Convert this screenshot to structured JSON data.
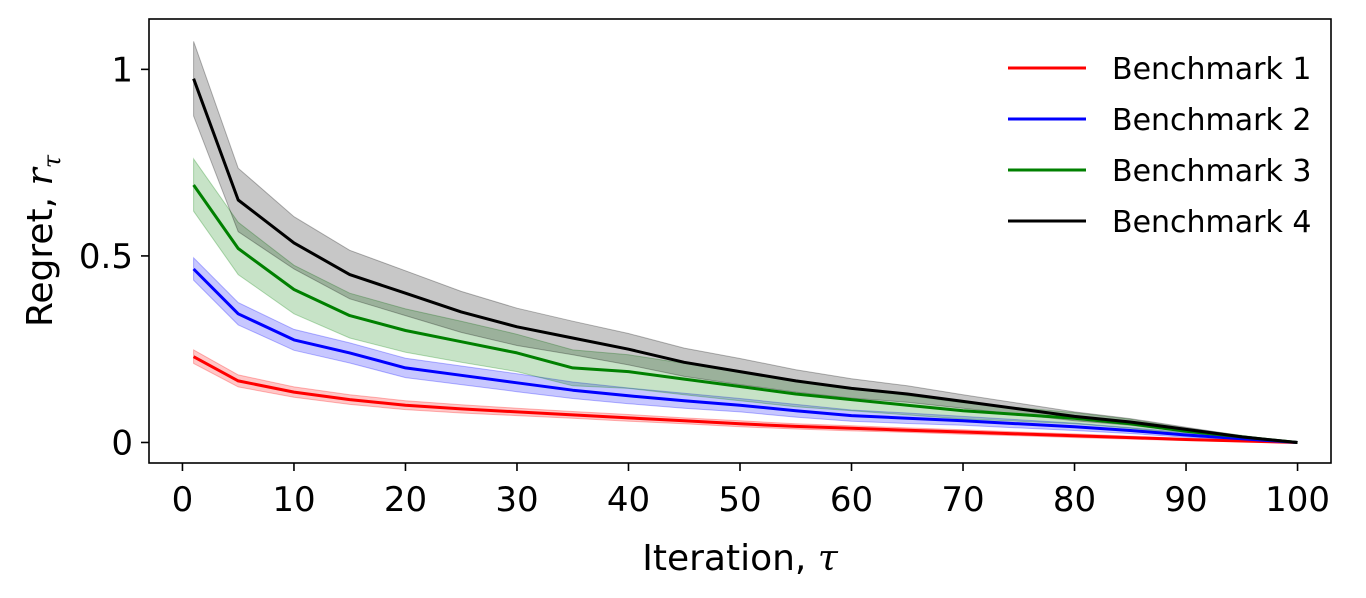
{
  "chart_data": {
    "type": "line",
    "xlabel": "Iteration, ",
    "xlabel_symbol": "τ",
    "ylabel": "Regret, ",
    "ylabel_symbol": "r",
    "ylabel_subscript": "τ",
    "xlim": [
      -3,
      103
    ],
    "ylim": [
      -0.055,
      1.135
    ],
    "xticks": [
      0,
      10,
      20,
      30,
      40,
      50,
      60,
      70,
      80,
      90,
      100
    ],
    "xtick_labels": [
      "0",
      "10",
      "20",
      "30",
      "40",
      "50",
      "60",
      "70",
      "80",
      "90",
      "100"
    ],
    "yticks": [
      0,
      0.5,
      1
    ],
    "ytick_labels": [
      "0",
      "0.5",
      "1"
    ],
    "grid": false,
    "legend_position": "top-right",
    "x": [
      1,
      5,
      10,
      15,
      20,
      25,
      30,
      35,
      40,
      45,
      50,
      55,
      60,
      65,
      70,
      75,
      80,
      85,
      90,
      95,
      100
    ],
    "series": [
      {
        "name": "Benchmark 1",
        "color": "#ff0000",
        "values": [
          0.23,
          0.165,
          0.135,
          0.115,
          0.1,
          0.09,
          0.082,
          0.074,
          0.066,
          0.058,
          0.05,
          0.043,
          0.038,
          0.033,
          0.028,
          0.023,
          0.018,
          0.013,
          0.008,
          0.004,
          0.0
        ],
        "band": [
          0.018,
          0.016,
          0.014,
          0.013,
          0.012,
          0.011,
          0.01,
          0.009,
          0.009,
          0.008,
          0.008,
          0.007,
          0.007,
          0.006,
          0.006,
          0.005,
          0.005,
          0.004,
          0.003,
          0.002,
          0.0
        ]
      },
      {
        "name": "Benchmark 2",
        "color": "#0000ff",
        "values": [
          0.465,
          0.345,
          0.275,
          0.24,
          0.2,
          0.18,
          0.16,
          0.14,
          0.125,
          0.112,
          0.1,
          0.085,
          0.072,
          0.065,
          0.058,
          0.05,
          0.042,
          0.032,
          0.02,
          0.01,
          0.0
        ],
        "band": [
          0.03,
          0.03,
          0.028,
          0.027,
          0.026,
          0.025,
          0.024,
          0.022,
          0.021,
          0.02,
          0.018,
          0.017,
          0.015,
          0.014,
          0.012,
          0.011,
          0.01,
          0.008,
          0.006,
          0.004,
          0.0
        ]
      },
      {
        "name": "Benchmark 3",
        "color": "#008000",
        "values": [
          0.69,
          0.52,
          0.41,
          0.34,
          0.3,
          0.27,
          0.24,
          0.2,
          0.19,
          0.17,
          0.15,
          0.13,
          0.115,
          0.1,
          0.085,
          0.075,
          0.065,
          0.05,
          0.03,
          0.015,
          0.0
        ],
        "band": [
          0.07,
          0.07,
          0.065,
          0.06,
          0.058,
          0.055,
          0.05,
          0.048,
          0.045,
          0.042,
          0.038,
          0.034,
          0.03,
          0.026,
          0.022,
          0.018,
          0.015,
          0.012,
          0.008,
          0.004,
          0.0
        ]
      },
      {
        "name": "Benchmark 4",
        "color": "#000000",
        "values": [
          0.975,
          0.65,
          0.535,
          0.45,
          0.4,
          0.35,
          0.31,
          0.28,
          0.25,
          0.215,
          0.19,
          0.165,
          0.145,
          0.13,
          0.11,
          0.09,
          0.07,
          0.055,
          0.035,
          0.015,
          0.0
        ],
        "band": [
          0.1,
          0.085,
          0.07,
          0.065,
          0.06,
          0.055,
          0.05,
          0.045,
          0.042,
          0.038,
          0.035,
          0.03,
          0.026,
          0.022,
          0.018,
          0.015,
          0.012,
          0.009,
          0.006,
          0.003,
          0.0
        ]
      }
    ]
  }
}
